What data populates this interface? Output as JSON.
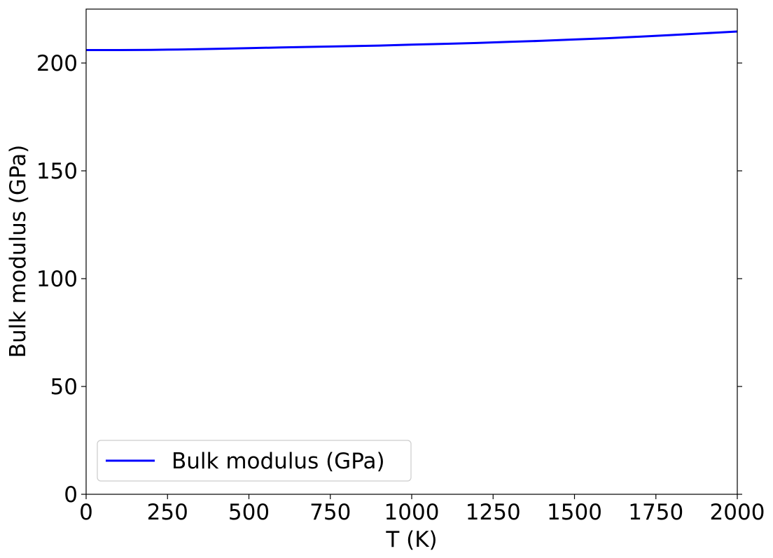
{
  "chart_data": {
    "type": "line",
    "title": "",
    "xlabel": "T (K)",
    "ylabel": "Bulk modulus (GPa)",
    "xlim": [
      0,
      2000
    ],
    "ylim": [
      0,
      225
    ],
    "xticks": [
      0,
      250,
      500,
      750,
      1000,
      1250,
      1500,
      1750,
      2000
    ],
    "yticks": [
      0,
      50,
      100,
      150,
      200
    ],
    "xtick_labels": [
      "0",
      "250",
      "500",
      "750",
      "1000",
      "1250",
      "1500",
      "1750",
      "2000"
    ],
    "ytick_labels": [
      "0",
      "50",
      "100",
      "150",
      "200"
    ],
    "grid": false,
    "legend": {
      "placement": "lower-left",
      "entries": [
        "Bulk modulus (GPa)"
      ]
    },
    "series": [
      {
        "name": "Bulk modulus (GPa)",
        "color": "#0000ff",
        "x": [
          0,
          50,
          100,
          150,
          200,
          250,
          300,
          400,
          500,
          600,
          700,
          800,
          900,
          1000,
          1100,
          1200,
          1300,
          1400,
          1500,
          1600,
          1700,
          1800,
          1900,
          2000
        ],
        "y": [
          206.0,
          206.0,
          206.0,
          206.05,
          206.1,
          206.2,
          206.3,
          206.6,
          206.9,
          207.2,
          207.5,
          207.8,
          208.1,
          208.5,
          208.9,
          209.3,
          209.8,
          210.3,
          210.9,
          211.5,
          212.2,
          213.0,
          213.8,
          214.6
        ]
      }
    ]
  }
}
